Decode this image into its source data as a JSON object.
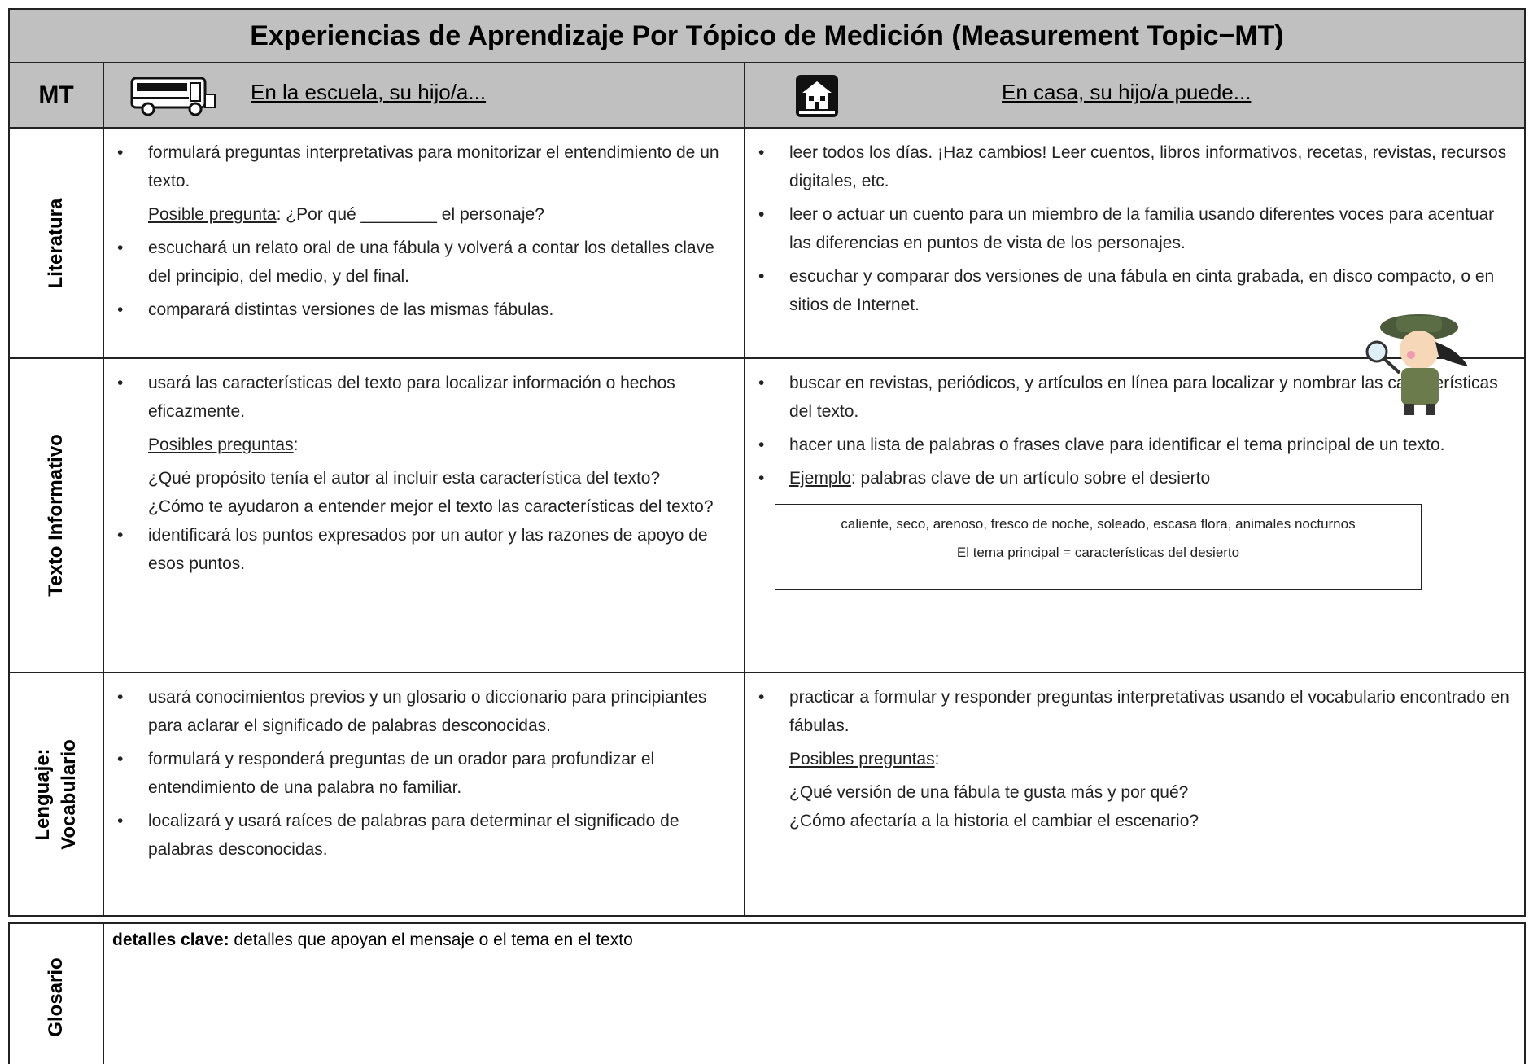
{
  "header": {
    "title": "Experiencias de Aprendizaje Por Tópico de Medición (Measurement Topic−MT)",
    "col_mt": "MT",
    "col_school": "En la escuela, su hijo/a...",
    "col_home": "En casa, su hijo/a puede..."
  },
  "rows": [
    {
      "label": [
        "Literatura"
      ],
      "school": [
        {
          "bullet": "formulará preguntas interpretativas para monitorizar el entendimiento de un texto."
        },
        {
          "underlined": "Posible pregunta",
          "text": ": ¿Por qué ________ el personaje?"
        },
        {
          "bullet": "escuchará un relato oral de una fábula y volverá a contar los detalles clave del principio, del medio, y del final."
        },
        {
          "bullet": "comparará distintas versiones de las mismas fábulas."
        }
      ],
      "home": [
        {
          "bullet": "leer todos los días.  ¡Haz cambios!  Leer cuentos, libros informativos, recetas, revistas, recursos digitales, etc."
        },
        {
          "bullet": "leer o actuar un cuento para un miembro de la familia usando diferentes voces para acentuar las diferencias en puntos de vista de los personajes."
        },
        {
          "bullet": "escuchar y comparar dos versiones de una fábula en cinta grabada, en disco compacto, o en sitios de Internet."
        }
      ]
    },
    {
      "label": [
        "Texto Informativo"
      ],
      "school": [
        {
          "bullet": "usará las características del texto para localizar información o hechos eficazmente."
        },
        {
          "underlined": "Posibles preguntas",
          "text": ":"
        },
        {
          "line": "¿Qué propósito tenía el autor al incluir esta característica del texto?"
        },
        {
          "line": "¿Cómo te ayudaron a entender mejor el texto las características del texto?"
        },
        {
          "bullet": "identificará los puntos expresados por un autor y las razones de apoyo de esos puntos."
        }
      ],
      "home": [
        {
          "bullet": "buscar en revistas, periódicos, y artículos en línea para localizar y nombrar las características del texto."
        },
        {
          "bullet": "hacer una lista de palabras o frases clave para identificar el tema principal de un texto."
        },
        {
          "bullet_underlined": "Ejemplo",
          "bullet": ": palabras clave de un artículo sobre el desierto"
        },
        {
          "box": [
            "caliente, seco, arenoso, fresco de noche, soleado, escasa flora, animales nocturnos",
            "El tema principal = características del desierto"
          ]
        }
      ]
    },
    {
      "label": [
        "Lenguaje:",
        "Vocabulario"
      ],
      "school": [
        {
          "bullet": "usará conocimientos previos y un glosario o diccionario para principiantes para aclarar el significado de palabras desconocidas."
        },
        {
          "bullet": "formulará y responderá preguntas de un orador para profundizar el entendimiento de una palabra no familiar."
        },
        {
          "bullet": "localizará y usará raíces de palabras para determinar el significado de palabras desconocidas."
        }
      ],
      "home": [
        {
          "bullet": "practicar a formular y responder preguntas interpretativas usando el vocabulario encontrado en fábulas."
        },
        {
          "underlined": "Posibles preguntas",
          "text": ":"
        },
        {
          "line": "¿Qué versión de una fábula te gusta más y por qué?"
        },
        {
          "line": "¿Cómo afectaría a la historia el cambiar el escenario?"
        }
      ]
    }
  ],
  "glossary": {
    "label": "Glosario",
    "term": "detalles clave:",
    "definition": " detalles que apoyan el mensaje o el tema en el texto"
  }
}
